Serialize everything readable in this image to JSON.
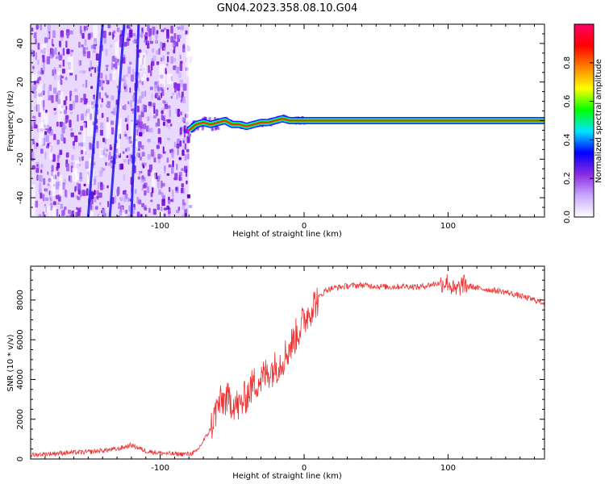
{
  "figure": {
    "title": "GN04.2023.358.08.10.G04"
  },
  "chart_data": [
    {
      "type": "heatmap",
      "title": "",
      "xlabel": "Height of straight line (km)",
      "ylabel": "Frequency (Hz)",
      "xlim": [
        -190,
        167
      ],
      "ylim": [
        -50,
        50
      ],
      "x_ticks": [
        -100,
        0,
        100
      ],
      "y_ticks": [
        -40,
        -20,
        0,
        20,
        40
      ],
      "noise_region_x": [
        -190,
        -80
      ],
      "noise_band_lines": [
        {
          "x_at_top": -125,
          "x_at_bottom": -135
        },
        {
          "x_at_top": -140,
          "x_at_bottom": -150
        },
        {
          "x_at_top": -115,
          "x_at_bottom": -120
        }
      ],
      "signal_line": [
        {
          "x": -80,
          "f": -5
        },
        {
          "x": -75,
          "f": -2
        },
        {
          "x": -70,
          "f": -1
        },
        {
          "x": -65,
          "f": -2
        },
        {
          "x": -60,
          "f": -1
        },
        {
          "x": -55,
          "f": 0
        },
        {
          "x": -50,
          "f": -2
        },
        {
          "x": -45,
          "f": -2
        },
        {
          "x": -40,
          "f": -3
        },
        {
          "x": -35,
          "f": -2
        },
        {
          "x": -30,
          "f": -1
        },
        {
          "x": -25,
          "f": -1
        },
        {
          "x": -20,
          "f": 0
        },
        {
          "x": -15,
          "f": 1
        },
        {
          "x": -10,
          "f": 0
        },
        {
          "x": 0,
          "f": 0
        },
        {
          "x": 167,
          "f": 0
        }
      ],
      "colorbar": {
        "label": "Normalized spectral amplitude",
        "range": [
          0,
          1
        ],
        "ticks": [
          "0.0",
          "0.2",
          "0.4",
          "0.6",
          "0.8"
        ],
        "tick_values": [
          0,
          0.2,
          0.4,
          0.6,
          0.8
        ],
        "colors": [
          "#ffffff",
          "#c9a8ff",
          "#8a2be2",
          "#0000ff",
          "#00e5ff",
          "#00ff00",
          "#ffff00",
          "#ff8000",
          "#ff0000",
          "#ff0066"
        ]
      }
    },
    {
      "type": "line",
      "title": "",
      "xlabel": "Height of straight line (km)",
      "ylabel": "SNR (10 * v/v)",
      "xlim": [
        -190,
        167
      ],
      "ylim": [
        0,
        9700
      ],
      "x_ticks": [
        -100,
        0,
        100
      ],
      "y_ticks": [
        0,
        2000,
        4000,
        6000,
        8000
      ],
      "color": "#ee3333",
      "series": [
        {
          "x": [
            -190,
            -170,
            -150,
            -130,
            -120,
            -110,
            -100,
            -90,
            -80,
            -75,
            -70,
            -65,
            -60,
            -55,
            -50,
            -45,
            -40,
            -35,
            -30,
            -25,
            -20,
            -15,
            -10,
            -5,
            0,
            5,
            10,
            15,
            20,
            30,
            40,
            50,
            60,
            70,
            80,
            90,
            100,
            105,
            110,
            120,
            130,
            140,
            150,
            160,
            167
          ],
          "y": [
            200,
            300,
            350,
            500,
            700,
            400,
            300,
            250,
            250,
            350,
            900,
            1500,
            2700,
            3000,
            2900,
            2600,
            3200,
            3800,
            4000,
            4400,
            4600,
            5000,
            5600,
            6300,
            7000,
            7600,
            8100,
            8500,
            8600,
            8700,
            8750,
            8700,
            8650,
            8700,
            8650,
            8800,
            8900,
            8400,
            8800,
            8600,
            8500,
            8400,
            8200,
            8000,
            7850
          ]
        }
      ]
    }
  ]
}
